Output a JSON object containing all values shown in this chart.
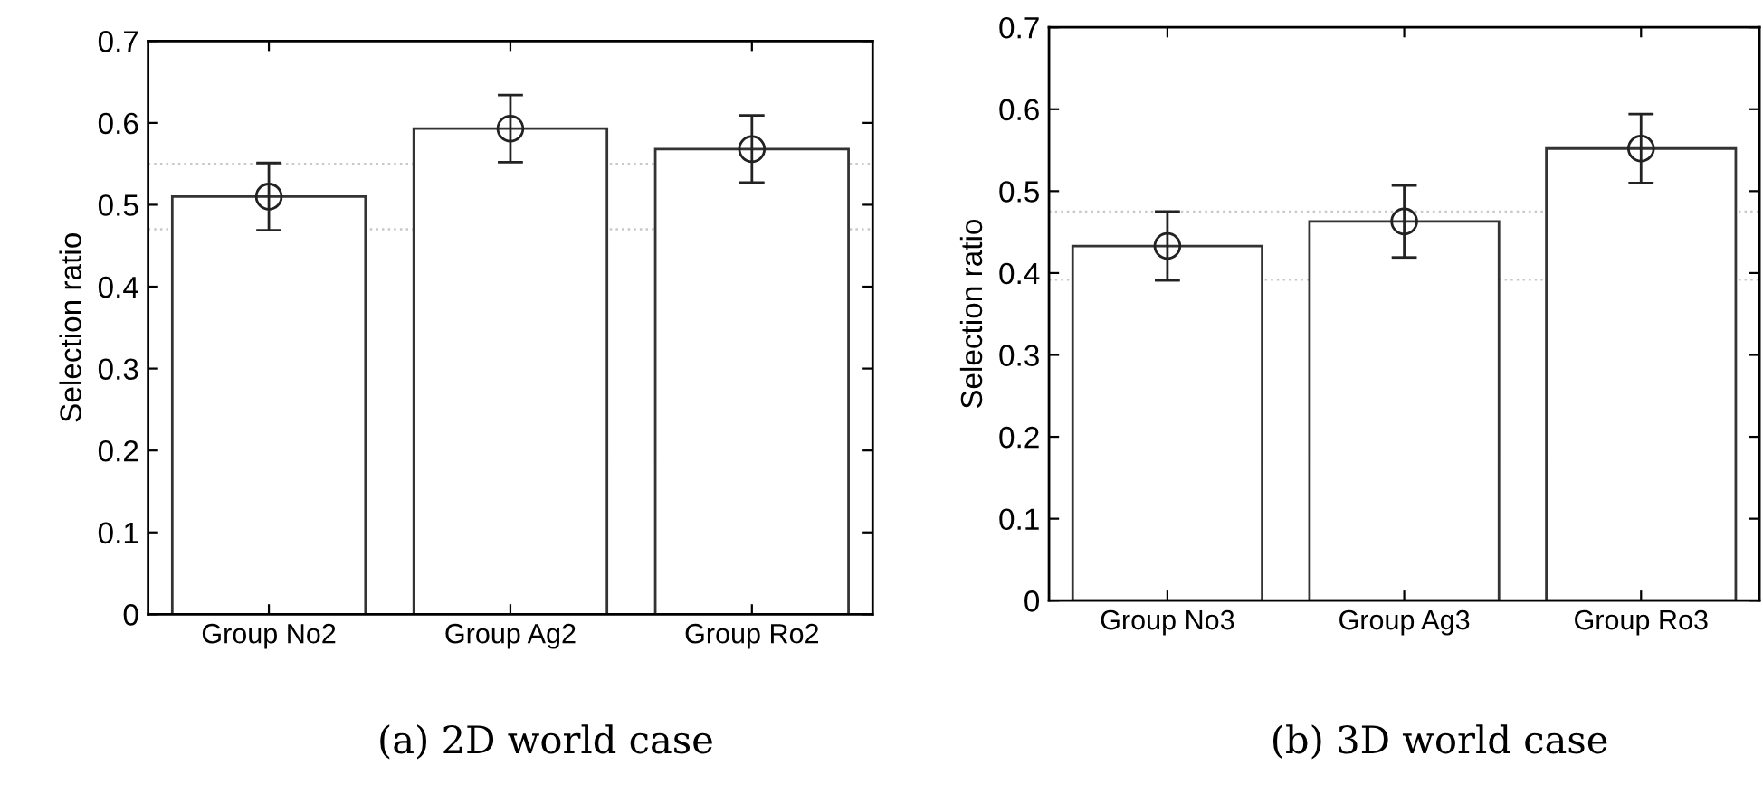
{
  "chart_data": [
    {
      "type": "bar",
      "categories": [
        "Group No2",
        "Group Ag2",
        "Group Ro2"
      ],
      "series": [
        {
          "color": "#ffffff",
          "values": [
            0.51,
            0.593,
            0.568
          ]
        },
        {
          "type": "scatter",
          "color": "#222222",
          "x": [
            "Group No2",
            "Group Ag2",
            "Group Ro2"
          ],
          "values": [
            0.51,
            0.593,
            0.568
          ],
          "errors": [
            0.041,
            0.041,
            0.041
          ]
        }
      ],
      "ylabel": "Selection ratio",
      "ylim": [
        0,
        0.7
      ],
      "yticks": [
        0,
        0.1,
        0.2,
        0.3,
        0.4,
        0.5,
        0.6,
        0.7
      ],
      "marker": "circle",
      "grid": false,
      "ref_lines": [
        {
          "axis": "y",
          "value": 0.55,
          "color": "#c8c8c8",
          "line_style": "dotted"
        },
        {
          "axis": "y",
          "value": 0.47,
          "color": "#c8c8c8",
          "line_style": "dotted"
        }
      ],
      "annotations": [
        "(a) 2D world case"
      ]
    },
    {
      "type": "bar",
      "categories": [
        "Group No3",
        "Group Ag3",
        "Group Ro3"
      ],
      "series": [
        {
          "color": "#ffffff",
          "values": [
            0.433,
            0.463,
            0.552
          ]
        },
        {
          "type": "scatter",
          "color": "#222222",
          "x": [
            "Group No3",
            "Group Ag3",
            "Group Ro3"
          ],
          "values": [
            0.433,
            0.463,
            0.552
          ],
          "errors": [
            0.042,
            0.044,
            0.042
          ]
        }
      ],
      "ylabel": "Selection ratio",
      "ylim": [
        0,
        0.7
      ],
      "yticks": [
        0,
        0.1,
        0.2,
        0.3,
        0.4,
        0.5,
        0.6,
        0.7
      ],
      "marker": "circle",
      "grid": false,
      "ref_lines": [
        {
          "axis": "y",
          "value": 0.475,
          "color": "#c8c8c8",
          "line_style": "dotted"
        },
        {
          "axis": "y",
          "value": 0.392,
          "color": "#c8c8c8",
          "line_style": "dotted"
        }
      ],
      "annotations": [
        "(b) 3D world case"
      ]
    }
  ]
}
